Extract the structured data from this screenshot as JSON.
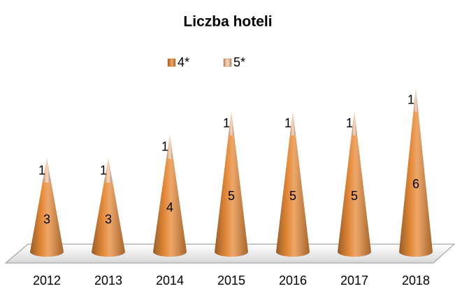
{
  "chart_data": {
    "type": "cone",
    "title": "Liczba hoteli",
    "categories": [
      "2012",
      "2013",
      "2014",
      "2015",
      "2016",
      "2017",
      "2018"
    ],
    "series": [
      {
        "name": "4*",
        "color": "#e58a3a",
        "values": [
          3,
          3,
          4,
          5,
          5,
          5,
          6
        ]
      },
      {
        "name": "5*",
        "color": "#f3c6a4",
        "values": [
          1,
          1,
          1,
          1,
          1,
          1,
          1
        ]
      }
    ],
    "legend": "top"
  }
}
